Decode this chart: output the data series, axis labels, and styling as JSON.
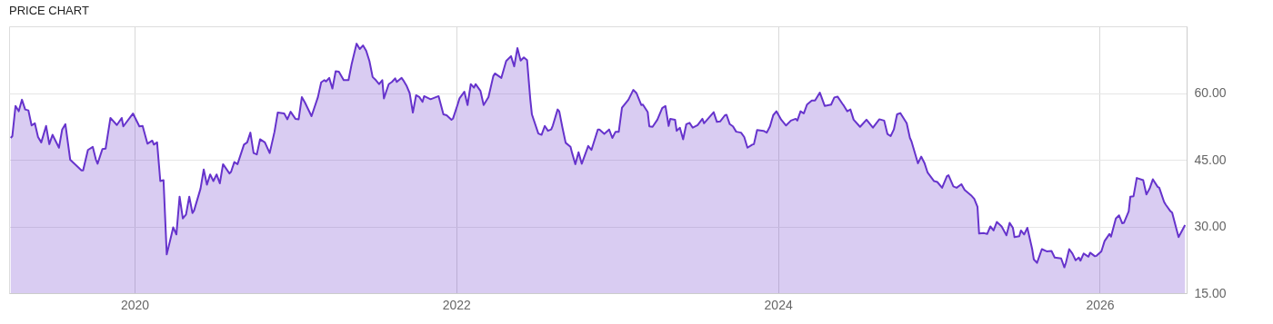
{
  "chart_data": {
    "type": "area",
    "title": "PRICE CHART",
    "x": [
      2019.23,
      2019.24,
      2019.26,
      2019.28,
      2019.3,
      2019.32,
      2019.34,
      2019.36,
      2019.38,
      2019.4,
      2019.42,
      2019.45,
      2019.47,
      2019.49,
      2019.53,
      2019.55,
      2019.57,
      2019.6,
      2019.67,
      2019.68,
      2019.71,
      2019.74,
      2019.76,
      2019.77,
      2019.8,
      2019.82,
      2019.85,
      2019.89,
      2019.92,
      2019.93,
      2019.99,
      2020.03,
      2020.05,
      2020.08,
      2020.11,
      2020.12,
      2020.14,
      2020.16,
      2020.18,
      2020.2,
      2020.23,
      2020.24,
      2020.26,
      2020.28,
      2020.3,
      2020.32,
      2020.34,
      2020.36,
      2020.37,
      2020.41,
      2020.43,
      2020.45,
      2020.47,
      2020.49,
      2020.51,
      2020.53,
      2020.55,
      2020.59,
      2020.6,
      2020.62,
      2020.64,
      2020.68,
      2020.7,
      2020.72,
      2020.74,
      2020.76,
      2020.78,
      2020.81,
      2020.84,
      2020.87,
      2020.89,
      2020.93,
      2020.95,
      2020.97,
      2021.0,
      2021.02,
      2021.04,
      2021.06,
      2021.1,
      2021.14,
      2021.16,
      2021.18,
      2021.19,
      2021.21,
      2021.23,
      2021.25,
      2021.27,
      2021.3,
      2021.33,
      2021.35,
      2021.38,
      2021.4,
      2021.42,
      2021.44,
      2021.46,
      2021.48,
      2021.5,
      2021.52,
      2021.54,
      2021.55,
      2021.58,
      2021.6,
      2021.62,
      2021.63,
      2021.66,
      2021.67,
      2021.69,
      2021.71,
      2021.73,
      2021.75,
      2021.77,
      2021.79,
      2021.8,
      2021.84,
      2021.89,
      2021.92,
      2021.94,
      2021.97,
      2021.98,
      2022.01,
      2022.02,
      2022.05,
      2022.07,
      2022.09,
      2022.11,
      2022.12,
      2022.15,
      2022.17,
      2022.2,
      2022.23,
      2022.24,
      2022.28,
      2022.31,
      2022.34,
      2022.36,
      2022.38,
      2022.4,
      2022.42,
      2022.44,
      2022.46,
      2022.47,
      2022.51,
      2022.53,
      2022.55,
      2022.57,
      2022.59,
      2022.6,
      2022.63,
      2022.64,
      2022.66,
      2022.68,
      2022.71,
      2022.72,
      2022.74,
      2022.76,
      2022.78,
      2022.82,
      2022.84,
      2022.88,
      2022.89,
      2022.92,
      2022.95,
      2022.97,
      2022.99,
      2023.01,
      2023.03,
      2023.07,
      2023.1,
      2023.12,
      2023.15,
      2023.16,
      2023.19,
      2023.2,
      2023.22,
      2023.25,
      2023.28,
      2023.3,
      2023.32,
      2023.33,
      2023.36,
      2023.37,
      2023.39,
      2023.41,
      2023.43,
      2023.45,
      2023.47,
      2023.5,
      2023.53,
      2023.54,
      2023.6,
      2023.62,
      2023.64,
      2023.67,
      2023.68,
      2023.7,
      2023.72,
      2023.74,
      2023.77,
      2023.79,
      2023.81,
      2023.84,
      2023.85,
      2023.87,
      2023.91,
      2023.93,
      2023.95,
      2023.97,
      2023.99,
      2024.02,
      2024.05,
      2024.08,
      2024.11,
      2024.12,
      2024.14,
      2024.16,
      2024.18,
      2024.21,
      2024.23,
      2024.26,
      2024.27,
      2024.29,
      2024.33,
      2024.35,
      2024.37,
      2024.4,
      2024.41,
      2024.43,
      2024.45,
      2024.47,
      2024.51,
      2024.55,
      2024.59,
      2024.63,
      2024.66,
      2024.68,
      2024.7,
      2024.72,
      2024.74,
      2024.76,
      2024.8,
      2024.82,
      2024.83,
      2024.87,
      2024.89,
      2024.91,
      2024.93,
      2024.97,
      2024.99,
      2025.02,
      2025.05,
      2025.06,
      2025.09,
      2025.11,
      2025.14,
      2025.16,
      2025.2,
      2025.22,
      2025.24,
      2025.25,
      2025.28,
      2025.3,
      2025.32,
      2025.34,
      2025.36,
      2025.39,
      2025.42,
      2025.44,
      2025.46,
      2025.47,
      2025.5,
      2025.51,
      2025.53,
      2025.55,
      2025.58,
      2025.59,
      2025.61,
      2025.64,
      2025.67,
      2025.7,
      2025.72,
      2025.76,
      2025.78,
      2025.79,
      2025.81,
      2025.83,
      2025.85,
      2025.87,
      2025.88,
      2025.9,
      2025.93,
      2025.94,
      2025.97,
      2025.98,
      2026.01,
      2026.03,
      2026.06,
      2026.07,
      2026.1,
      2026.12,
      2026.14,
      2026.15,
      2026.18,
      2026.19,
      2026.21,
      2026.23,
      2026.27,
      2026.29,
      2026.31,
      2026.33,
      2026.36,
      2026.37,
      2026.4,
      2026.41,
      2026.44,
      2026.45,
      2026.49,
      2026.53
    ],
    "series": [
      {
        "color": "#6633cc",
        "values": [
          49.9,
          50.3,
          57.1,
          55.9,
          58.5,
          56.3,
          56.1,
          52.7,
          53.2,
          50.1,
          48.9,
          52.6,
          48.5,
          50.6,
          47.7,
          51.8,
          53.0,
          45.0,
          42.6,
          42.6,
          47.2,
          47.9,
          45.0,
          44.1,
          47.4,
          47.5,
          54.4,
          52.8,
          54.4,
          52.5,
          55.4,
          52.5,
          52.6,
          48.6,
          49.3,
          48.4,
          48.9,
          40.2,
          40.4,
          23.7,
          28.2,
          29.8,
          28.2,
          36.7,
          31.8,
          32.7,
          36.7,
          33.0,
          33.6,
          38.5,
          42.8,
          39.4,
          41.7,
          40.2,
          41.7,
          39.7,
          44.0,
          41.9,
          42.3,
          44.5,
          44.0,
          48.4,
          48.9,
          51.1,
          46.5,
          46.2,
          49.6,
          48.9,
          46.5,
          51.3,
          55.6,
          55.4,
          54.1,
          55.8,
          54.2,
          54.1,
          59.1,
          57.8,
          54.8,
          59.1,
          62.4,
          62.9,
          62.6,
          63.4,
          61.0,
          64.9,
          64.8,
          62.9,
          62.9,
          66.6,
          71.1,
          69.9,
          70.7,
          69.5,
          67.2,
          63.6,
          62.9,
          62.0,
          62.9,
          58.8,
          62.0,
          62.5,
          63.3,
          62.5,
          63.4,
          62.9,
          61.7,
          60.0,
          55.6,
          59.5,
          59.1,
          58.0,
          59.3,
          58.6,
          59.3,
          55.2,
          55.0,
          54.0,
          54.3,
          57.6,
          58.8,
          60.3,
          57.3,
          62.0,
          61.2,
          62.0,
          60.5,
          57.3,
          59.1,
          63.8,
          64.4,
          63.4,
          67.2,
          68.3,
          66.0,
          70.1,
          67.3,
          68.0,
          67.4,
          58.6,
          55.2,
          50.9,
          50.6,
          52.6,
          51.5,
          51.8,
          52.7,
          56.3,
          55.9,
          52.2,
          48.8,
          47.9,
          46.5,
          44.0,
          46.7,
          44.1,
          48.1,
          47.2,
          51.8,
          51.8,
          50.8,
          51.8,
          49.9,
          51.3,
          51.3,
          56.7,
          58.5,
          60.7,
          60.0,
          57.3,
          57.4,
          55.7,
          52.5,
          52.4,
          54.0,
          56.6,
          57.1,
          52.6,
          54.2,
          54.0,
          51.5,
          52.2,
          49.6,
          53.0,
          53.3,
          52.2,
          52.8,
          54.2,
          53.2,
          55.7,
          53.5,
          53.6,
          55.0,
          55.1,
          53.0,
          52.5,
          51.3,
          51.1,
          50.1,
          47.7,
          48.4,
          48.5,
          51.7,
          51.5,
          51.1,
          52.5,
          55.0,
          55.9,
          54.0,
          52.7,
          53.8,
          54.2,
          53.8,
          55.9,
          55.4,
          57.4,
          58.3,
          58.3,
          60.1,
          59.1,
          57.1,
          57.4,
          59.0,
          59.2,
          57.6,
          57.1,
          55.9,
          56.3,
          54.0,
          52.4,
          54.0,
          52.2,
          54.1,
          53.8,
          50.8,
          50.3,
          51.8,
          55.2,
          55.5,
          53.2,
          49.9,
          49.1,
          44.2,
          45.7,
          44.3,
          42.1,
          40.2,
          40.0,
          38.7,
          41.3,
          41.5,
          39.0,
          38.7,
          39.5,
          38.2,
          37.0,
          36.2,
          34.4,
          28.4,
          28.5,
          28.3,
          30.0,
          29.1,
          31.0,
          30.0,
          28.0,
          30.8,
          29.7,
          27.6,
          27.8,
          29.1,
          28.2,
          29.7,
          24.9,
          22.6,
          21.8,
          24.9,
          24.4,
          24.5,
          23.0,
          22.8,
          20.8,
          21.9,
          24.9,
          23.9,
          22.4,
          23.0,
          22.3,
          23.9,
          23.2,
          24.1,
          23.3,
          23.4,
          24.4,
          26.7,
          28.3,
          27.7,
          31.8,
          32.5,
          30.7,
          30.8,
          33.4,
          36.7,
          36.8,
          40.9,
          40.4,
          37.2,
          38.5,
          40.6,
          38.9,
          38.7,
          35.5,
          34.9,
          33.4,
          33.1,
          27.6,
          30.3
        ]
      }
    ],
    "xlim": [
      2019.22,
      2026.54
    ],
    "xticks": [
      2020,
      2022,
      2024,
      2026
    ],
    "ylim": [
      15,
      75
    ],
    "yticks": [
      {
        "value": 15,
        "label": "15.00"
      },
      {
        "value": 30,
        "label": "30.00"
      },
      {
        "value": 45,
        "label": "45.00"
      },
      {
        "value": 60,
        "label": "60.00"
      }
    ],
    "grid": true
  }
}
